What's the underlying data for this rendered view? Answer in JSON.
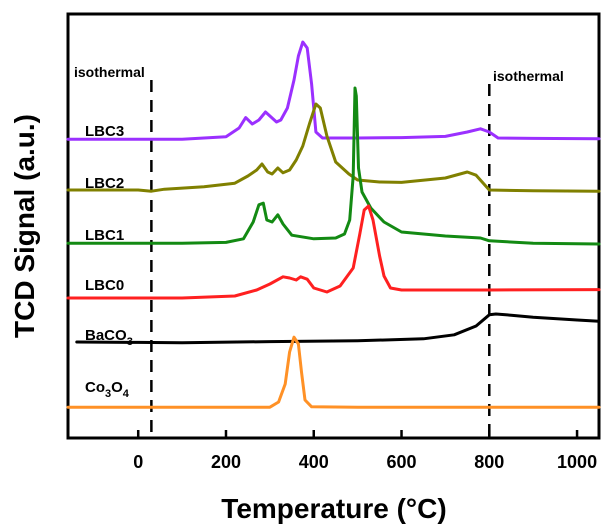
{
  "chart_data": {
    "type": "line",
    "xlabel": "Temperature (°C)",
    "ylabel": "TCD Signal (a.u.)",
    "xlim": [
      -160,
      1050
    ],
    "ylim": [
      0,
      100
    ],
    "xticks": [
      "0",
      "200",
      "400",
      "600",
      "800",
      "1000"
    ],
    "xtick_values": [
      0,
      200,
      400,
      600,
      800,
      1000
    ],
    "grid": false,
    "annotations": [
      {
        "text": "isothermal",
        "x_line": 30
      },
      {
        "text": "isothermal",
        "x_line": 800
      }
    ],
    "series": [
      {
        "name": "LBC3",
        "color": "#9b30ff",
        "points": [
          [
            -160,
            72.2
          ],
          [
            100,
            72.2
          ],
          [
            200,
            72.8
          ],
          [
            230,
            75.0
          ],
          [
            245,
            77.6
          ],
          [
            260,
            76.0
          ],
          [
            275,
            77.0
          ],
          [
            290,
            79.0
          ],
          [
            305,
            77.5
          ],
          [
            315,
            76.5
          ],
          [
            325,
            77.0
          ],
          [
            340,
            80.0
          ],
          [
            355,
            87.0
          ],
          [
            365,
            93.0
          ],
          [
            375,
            96.5
          ],
          [
            385,
            95.0
          ],
          [
            395,
            86.0
          ],
          [
            405,
            74.0
          ],
          [
            420,
            72.5
          ],
          [
            500,
            72.5
          ],
          [
            600,
            72.6
          ],
          [
            700,
            72.9
          ],
          [
            750,
            74.0
          ],
          [
            780,
            74.8
          ],
          [
            800,
            74.0
          ],
          [
            820,
            72.5
          ],
          [
            900,
            72.4
          ],
          [
            1050,
            72.3
          ]
        ]
      },
      {
        "name": "LBC2",
        "color": "#808000",
        "points": [
          [
            -160,
            59.5
          ],
          [
            0,
            59.5
          ],
          [
            30,
            59.2
          ],
          [
            60,
            59.7
          ],
          [
            150,
            60.3
          ],
          [
            220,
            61.2
          ],
          [
            250,
            63.0
          ],
          [
            270,
            64.5
          ],
          [
            282,
            66.0
          ],
          [
            295,
            64.0
          ],
          [
            305,
            63.5
          ],
          [
            318,
            65.0
          ],
          [
            330,
            63.8
          ],
          [
            345,
            64.5
          ],
          [
            360,
            67.0
          ],
          [
            375,
            70.5
          ],
          [
            390,
            76.0
          ],
          [
            405,
            81.0
          ],
          [
            415,
            80.0
          ],
          [
            430,
            73.0
          ],
          [
            450,
            66.5
          ],
          [
            480,
            63.5
          ],
          [
            500,
            62.0
          ],
          [
            550,
            61.5
          ],
          [
            600,
            61.4
          ],
          [
            700,
            62.5
          ],
          [
            750,
            64.0
          ],
          [
            770,
            63.2
          ],
          [
            800,
            59.5
          ],
          [
            900,
            59.3
          ],
          [
            1050,
            59.2
          ]
        ]
      },
      {
        "name": "LBC1",
        "color": "#138a13",
        "points": [
          [
            -160,
            46.2
          ],
          [
            100,
            46.2
          ],
          [
            200,
            46.4
          ],
          [
            240,
            47.3
          ],
          [
            262,
            51.5
          ],
          [
            275,
            55.8
          ],
          [
            285,
            56.2
          ],
          [
            293,
            52.0
          ],
          [
            305,
            51.5
          ],
          [
            318,
            53.3
          ],
          [
            330,
            51.0
          ],
          [
            350,
            48.2
          ],
          [
            400,
            47.3
          ],
          [
            450,
            47.5
          ],
          [
            470,
            48.5
          ],
          [
            482,
            52.0
          ],
          [
            490,
            63.0
          ],
          [
            494,
            85.0
          ],
          [
            497,
            83.0
          ],
          [
            502,
            65.0
          ],
          [
            510,
            59.0
          ],
          [
            530,
            55.0
          ],
          [
            560,
            51.5
          ],
          [
            600,
            49.0
          ],
          [
            700,
            48.0
          ],
          [
            780,
            47.5
          ],
          [
            800,
            46.8
          ],
          [
            900,
            46.2
          ],
          [
            1050,
            46.0
          ]
        ]
      },
      {
        "name": "LBC0",
        "color": "#ff2020",
        "points": [
          [
            -160,
            32.5
          ],
          [
            100,
            32.5
          ],
          [
            220,
            33.0
          ],
          [
            270,
            34.5
          ],
          [
            300,
            36.0
          ],
          [
            330,
            37.8
          ],
          [
            345,
            37.5
          ],
          [
            360,
            37.0
          ],
          [
            370,
            37.8
          ],
          [
            385,
            37.2
          ],
          [
            400,
            35.0
          ],
          [
            430,
            34.0
          ],
          [
            460,
            35.5
          ],
          [
            490,
            40.0
          ],
          [
            505,
            48.5
          ],
          [
            515,
            54.5
          ],
          [
            525,
            55.5
          ],
          [
            535,
            52.0
          ],
          [
            550,
            43.0
          ],
          [
            560,
            38.0
          ],
          [
            575,
            35.0
          ],
          [
            600,
            34.5
          ],
          [
            800,
            34.5
          ],
          [
            1050,
            34.6
          ]
        ]
      },
      {
        "name": "BaCO3",
        "color": "#000000",
        "points": [
          [
            -140,
            21.5
          ],
          [
            0,
            21.4
          ],
          [
            100,
            21.3
          ],
          [
            300,
            21.6
          ],
          [
            500,
            21.8
          ],
          [
            650,
            22.3
          ],
          [
            720,
            23.3
          ],
          [
            770,
            25.5
          ],
          [
            800,
            28.3
          ],
          [
            815,
            28.5
          ],
          [
            850,
            28.2
          ],
          [
            900,
            27.7
          ],
          [
            1000,
            27.0
          ],
          [
            1050,
            26.7
          ]
        ]
      },
      {
        "name": "Co3O4",
        "color": "#ff9126",
        "points": [
          [
            -160,
            5.2
          ],
          [
            200,
            5.2
          ],
          [
            300,
            5.2
          ],
          [
            320,
            6.5
          ],
          [
            335,
            11.0
          ],
          [
            345,
            19.0
          ],
          [
            355,
            22.7
          ],
          [
            365,
            21.0
          ],
          [
            372,
            14.0
          ],
          [
            380,
            7.0
          ],
          [
            395,
            5.3
          ],
          [
            500,
            5.2
          ],
          [
            1050,
            5.2
          ]
        ]
      }
    ]
  },
  "labels": {
    "isothermal_left": "isothermal",
    "isothermal_right": "isothermal",
    "s0": "LBC3",
    "s1": "LBC2",
    "s2": "LBC1",
    "s3": "LBC0",
    "s4_main": "BaCO",
    "s4_sub": "3",
    "s5_a": "Co",
    "s5_a_sub": "3",
    "s5_b": "O",
    "s5_b_sub": "4"
  }
}
